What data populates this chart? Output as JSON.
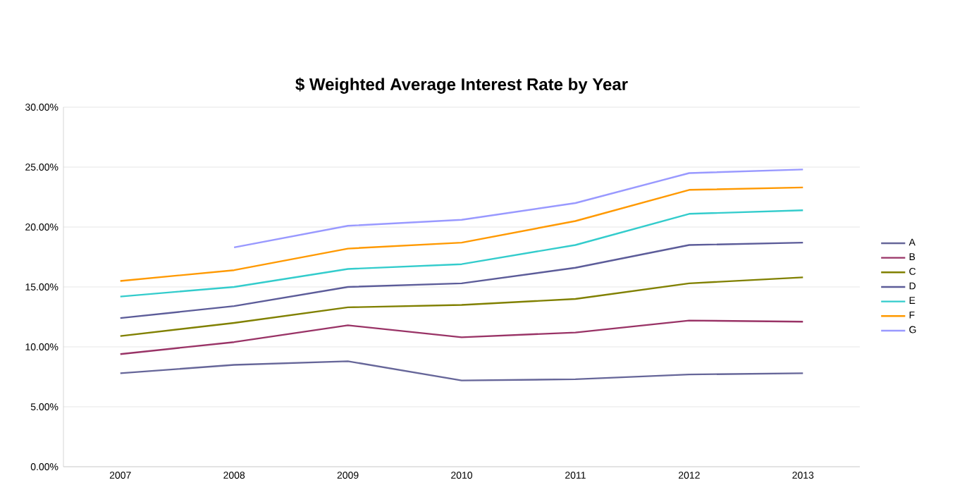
{
  "chart_data": {
    "type": "line",
    "title": "$ Weighted Average Interest Rate by Year",
    "categories": [
      "2007",
      "2008",
      "2009",
      "2010",
      "2011",
      "2012",
      "2013"
    ],
    "ylim": [
      0,
      30
    ],
    "yticks": [
      {
        "value": 0,
        "label": "0.00%"
      },
      {
        "value": 5,
        "label": "5.00%"
      },
      {
        "value": 10,
        "label": "10.00%"
      },
      {
        "value": 15,
        "label": "15.00%"
      },
      {
        "value": 20,
        "label": "20.00%"
      },
      {
        "value": 25,
        "label": "25.00%"
      },
      {
        "value": 30,
        "label": "30.00%"
      }
    ],
    "grid": "y",
    "legend": "right",
    "marker": "none",
    "series": [
      {
        "name": "A",
        "color": "#666699",
        "values": [
          7.8,
          8.5,
          8.8,
          7.2,
          7.3,
          7.7,
          7.8
        ]
      },
      {
        "name": "B",
        "color": "#993366",
        "values": [
          9.4,
          10.4,
          11.8,
          10.8,
          11.2,
          12.2,
          12.1
        ]
      },
      {
        "name": "C",
        "color": "#808000",
        "values": [
          10.9,
          12.0,
          13.3,
          13.5,
          14.0,
          15.3,
          15.8
        ]
      },
      {
        "name": "D",
        "color": "#5c5c99",
        "values": [
          12.4,
          13.4,
          15.0,
          15.3,
          16.6,
          18.5,
          18.7
        ]
      },
      {
        "name": "E",
        "color": "#33cccc",
        "values": [
          14.2,
          15.0,
          16.5,
          16.9,
          18.5,
          21.1,
          21.4
        ]
      },
      {
        "name": "F",
        "color": "#ff9900",
        "values": [
          15.5,
          16.4,
          18.2,
          18.7,
          20.5,
          23.1,
          23.3
        ]
      },
      {
        "name": "G",
        "color": "#9999ff",
        "values": [
          null,
          18.3,
          20.1,
          20.6,
          22.0,
          24.5,
          24.8
        ]
      }
    ]
  }
}
